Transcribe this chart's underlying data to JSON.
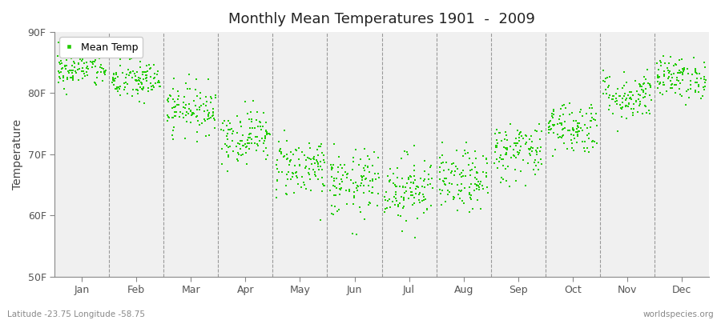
{
  "title": "Monthly Mean Temperatures 1901  -  2009",
  "ylabel": "Temperature",
  "ylim": [
    50,
    90
  ],
  "yticks": [
    50,
    60,
    70,
    80,
    90
  ],
  "ytick_labels": [
    "50F",
    "60F",
    "70F",
    "80F",
    "90F"
  ],
  "months": [
    "Jan",
    "Feb",
    "Mar",
    "Apr",
    "May",
    "Jun",
    "Jul",
    "Aug",
    "Sep",
    "Oct",
    "Nov",
    "Dec"
  ],
  "month_means": [
    84.0,
    82.0,
    77.5,
    73.0,
    68.0,
    65.0,
    64.5,
    65.5,
    70.5,
    74.5,
    79.5,
    82.5
  ],
  "month_stds": [
    1.6,
    1.7,
    2.0,
    2.2,
    2.5,
    2.8,
    2.8,
    2.5,
    2.5,
    2.2,
    2.0,
    1.7
  ],
  "dot_color": "#22CC00",
  "legend_label": "Mean Temp",
  "plot_bg_color": "#F0F0F0",
  "fig_color": "#FFFFFF",
  "bottom_left": "Latitude -23.75 Longitude -58.75",
  "bottom_right": "worldspecies.org",
  "n_years": 109,
  "seed": 42,
  "dot_size": 3,
  "vline_color": "#999999",
  "title_fontsize": 13,
  "tick_fontsize": 9,
  "ylabel_fontsize": 10
}
